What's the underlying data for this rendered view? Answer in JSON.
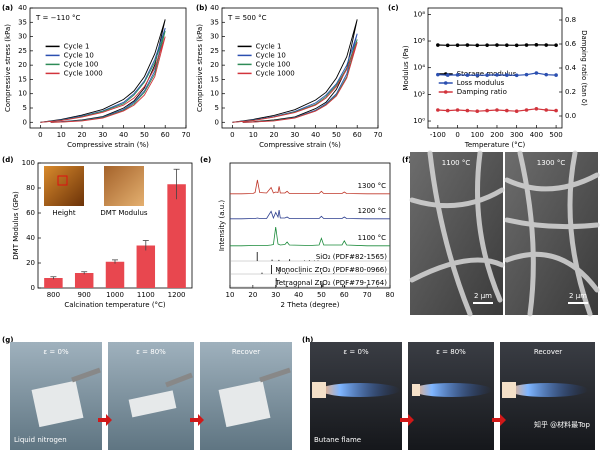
{
  "chart_data": [
    {
      "type": "line",
      "label": "(a)",
      "annotation": "T = −110 °C",
      "xlabel": "Compressive strain (%)",
      "ylabel": "Compressive stress (kPa)",
      "xlim": [
        -5,
        70
      ],
      "xticks": [
        0,
        10,
        20,
        30,
        40,
        50,
        60,
        70
      ],
      "ylim": [
        -2,
        40
      ],
      "yticks": [
        0,
        5,
        10,
        15,
        20,
        25,
        30,
        35,
        40
      ],
      "legend": "center left",
      "x": [
        0,
        10,
        20,
        30,
        40,
        45,
        50,
        55,
        60,
        55,
        50,
        45,
        40,
        30,
        20,
        10,
        5
      ],
      "series": [
        {
          "name": "Cycle 1",
          "color": "#000000",
          "values": [
            0,
            1,
            2.5,
            4.5,
            8,
            11,
            16,
            24,
            36,
            20,
            12,
            7.5,
            5,
            2,
            0.8,
            0.2,
            0
          ]
        },
        {
          "name": "Cycle 10",
          "color": "#2b4fb0",
          "values": [
            0,
            0.8,
            2.2,
            4,
            7,
            10,
            14.5,
            22,
            33,
            18,
            11,
            7,
            4.5,
            1.8,
            0.7,
            0.2,
            0
          ]
        },
        {
          "name": "Cycle 100",
          "color": "#2e8b57",
          "values": [
            0,
            0.7,
            2,
            3.8,
            6.5,
            9.5,
            14,
            21,
            32,
            17,
            10.5,
            6.5,
            4.2,
            1.7,
            0.6,
            0.1,
            0
          ]
        },
        {
          "name": "Cycle 1000",
          "color": "#d2343c",
          "values": [
            0,
            0.6,
            1.8,
            3.5,
            6,
            8.5,
            12.5,
            19,
            30,
            16,
            9.5,
            6,
            4,
            1.5,
            0.5,
            0.1,
            0
          ]
        }
      ]
    },
    {
      "type": "line",
      "label": "(b)",
      "annotation": "T = 500 °C",
      "xlabel": "Compressive strain (%)",
      "ylabel": "Compressive stress (kPa)",
      "xlim": [
        -5,
        70
      ],
      "xticks": [
        0,
        10,
        20,
        30,
        40,
        50,
        60,
        70
      ],
      "ylim": [
        -2,
        40
      ],
      "yticks": [
        0,
        5,
        10,
        15,
        20,
        25,
        30,
        35,
        40
      ],
      "legend": "center left",
      "x": [
        0,
        10,
        20,
        30,
        40,
        45,
        50,
        55,
        60,
        55,
        50,
        45,
        40,
        30,
        20,
        10,
        5
      ],
      "series": [
        {
          "name": "Cycle 1",
          "color": "#000000",
          "values": [
            0,
            1,
            2.4,
            4.4,
            7.8,
            10.5,
            15.5,
            23,
            36,
            19,
            11.5,
            7,
            4.8,
            1.9,
            0.8,
            0.2,
            0
          ]
        },
        {
          "name": "Cycle 10",
          "color": "#2b4fb0",
          "values": [
            0,
            0.8,
            2,
            3.8,
            6.8,
            9.5,
            13.5,
            20,
            31,
            17,
            10,
            6.5,
            4.2,
            1.7,
            0.6,
            0.1,
            0
          ]
        },
        {
          "name": "Cycle 100",
          "color": "#2e8b57",
          "values": [
            0,
            0.7,
            1.9,
            3.6,
            6.3,
            9,
            13,
            19,
            29,
            16,
            9.5,
            6.2,
            4,
            1.6,
            0.6,
            0.1,
            0
          ]
        },
        {
          "name": "Cycle 1000",
          "color": "#d2343c",
          "values": [
            0,
            0.6,
            1.8,
            3.4,
            6,
            8.5,
            12.5,
            18.5,
            28,
            15.5,
            9.2,
            6,
            3.9,
            1.5,
            0.5,
            0.1,
            0
          ]
        }
      ]
    },
    {
      "type": "line",
      "label": "(c)",
      "xlabel": "Temperature (°C)",
      "ylabel": "Modulus (Pa)",
      "y2label": "Damping ratio (tan δ)",
      "log": true,
      "xlim": [
        -150,
        530
      ],
      "xticks": [
        -100,
        0,
        100,
        200,
        300,
        400,
        500
      ],
      "ylim": [
        0.3,
        300000000
      ],
      "yticks": [
        {
          "value": 1,
          "label": "10⁰"
        },
        {
          "value": 100,
          "label": "10²"
        },
        {
          "value": 10000,
          "label": "10⁴"
        },
        {
          "value": 1000000,
          "label": "10⁶"
        },
        {
          "value": 100000000,
          "label": "10⁸"
        }
      ],
      "y2lim": [
        -0.1,
        0.9
      ],
      "y2ticks": [
        {
          "value": 0,
          "label": "0.0"
        },
        0.2,
        0.4,
        0.6,
        0.8
      ],
      "legend": "center",
      "x": [
        -100,
        -50,
        0,
        50,
        100,
        150,
        200,
        250,
        300,
        350,
        400,
        450,
        500
      ],
      "series": [
        {
          "name": "Storage modulus",
          "color": "#000000",
          "values": [
            500000,
            480000,
            490000,
            500000,
            480000,
            490000,
            500000,
            490000,
            480000,
            500000,
            520000,
            500000,
            490000
          ]
        },
        {
          "name": "Loss modulus",
          "color": "#2b4fb0",
          "values": [
            3000,
            2800,
            2900,
            2800,
            2700,
            2800,
            2900,
            2800,
            2700,
            3000,
            4000,
            3000,
            2800
          ]
        },
        {
          "name": "Damping ratio",
          "color": "#d2343c",
          "axis": "y2",
          "values": [
            0.05,
            0.045,
            0.05,
            0.045,
            0.04,
            0.045,
            0.05,
            0.045,
            0.04,
            0.05,
            0.06,
            0.05,
            0.045
          ]
        }
      ]
    },
    {
      "type": "bar",
      "label": "(d)",
      "xlabel": "Calcination temperature (°C)",
      "ylabel": "DMT Modulus (GPa)",
      "annotations": [
        "Height",
        "DMT Modulus"
      ],
      "categories": [
        "800",
        "900",
        "1000",
        "1100",
        "1200"
      ],
      "values": [
        8,
        12,
        21,
        34,
        83
      ],
      "errors": [
        1,
        1,
        1.5,
        4,
        12
      ],
      "color": "#e8474f",
      "ylim": [
        0,
        100
      ],
      "yticks": [
        0,
        20,
        40,
        60,
        80,
        100
      ]
    },
    {
      "type": "xrd",
      "label": "(e)",
      "xlabel": "2 Theta (degree)",
      "ylabel": "Intensity (a.u.)",
      "xlim": [
        10,
        80
      ],
      "xticks": [
        10,
        20,
        30,
        40,
        50,
        60,
        70,
        80
      ],
      "x": [
        10,
        15,
        20,
        21,
        22,
        23,
        26,
        28,
        29,
        30,
        31,
        31.5,
        32,
        34,
        35,
        36,
        45,
        49,
        50,
        51,
        59,
        60,
        61,
        70,
        80
      ],
      "series": [
        {
          "name": "1300 °C",
          "color": "#c0392b",
          "values": [
            5,
            5,
            6,
            10,
            60,
            10,
            8,
            30,
            8,
            12,
            10,
            35,
            8,
            8,
            15,
            6,
            6,
            6,
            15,
            6,
            6,
            12,
            6,
            5,
            5
          ]
        },
        {
          "name": "1200 °C",
          "color": "#2c3e8f",
          "values": [
            5,
            5,
            6,
            6,
            8,
            6,
            6,
            35,
            8,
            30,
            12,
            40,
            8,
            8,
            12,
            6,
            6,
            6,
            15,
            6,
            6,
            12,
            6,
            5,
            5
          ]
        },
        {
          "name": "1100 °C",
          "color": "#1a8a3a",
          "values": [
            5,
            5,
            6,
            6,
            6,
            6,
            6,
            8,
            10,
            80,
            12,
            10,
            8,
            10,
            20,
            8,
            6,
            8,
            35,
            8,
            8,
            25,
            8,
            5,
            5
          ]
        }
      ],
      "references": [
        {
          "name": "SiO₂ (PDF#82-1565)",
          "x": [
            21.9,
            28.4,
            31.4,
            36.1,
            42.6,
            44.7,
            46.9,
            48.5
          ],
          "values": [
            100,
            15,
            12,
            20,
            5,
            8,
            5,
            6
          ]
        },
        {
          "name": "Monoclinic ZrO₂ (PDF#80-0966)",
          "x": [
            24,
            28.2,
            31.5,
            34.2,
            35.3,
            40.7,
            50.1,
            55.4
          ],
          "values": [
            15,
            100,
            70,
            20,
            15,
            12,
            20,
            10
          ]
        },
        {
          "name": "Tetragonal ZrO₂ (PDF#79-1764)",
          "x": [
            30.2,
            34.6,
            35.2,
            50.2,
            50.7,
            59.3,
            60.2,
            74.5
          ],
          "values": [
            100,
            20,
            10,
            50,
            30,
            20,
            15,
            8
          ]
        }
      ]
    }
  ],
  "images": [
    {
      "label": "(f)",
      "texts": [
        "1100 °C",
        "1300 °C",
        "2 μm",
        "2 μm"
      ]
    },
    {
      "label": "(g)",
      "texts": [
        "ε = 0%",
        "ε = 80%",
        "Recover",
        "Liquid nitrogen"
      ]
    },
    {
      "label": "(h)",
      "texts": [
        "ε = 0%",
        "ε = 80%",
        "Recover",
        "Butane flame"
      ],
      "watermark": "知乎 @材料最Top"
    }
  ]
}
